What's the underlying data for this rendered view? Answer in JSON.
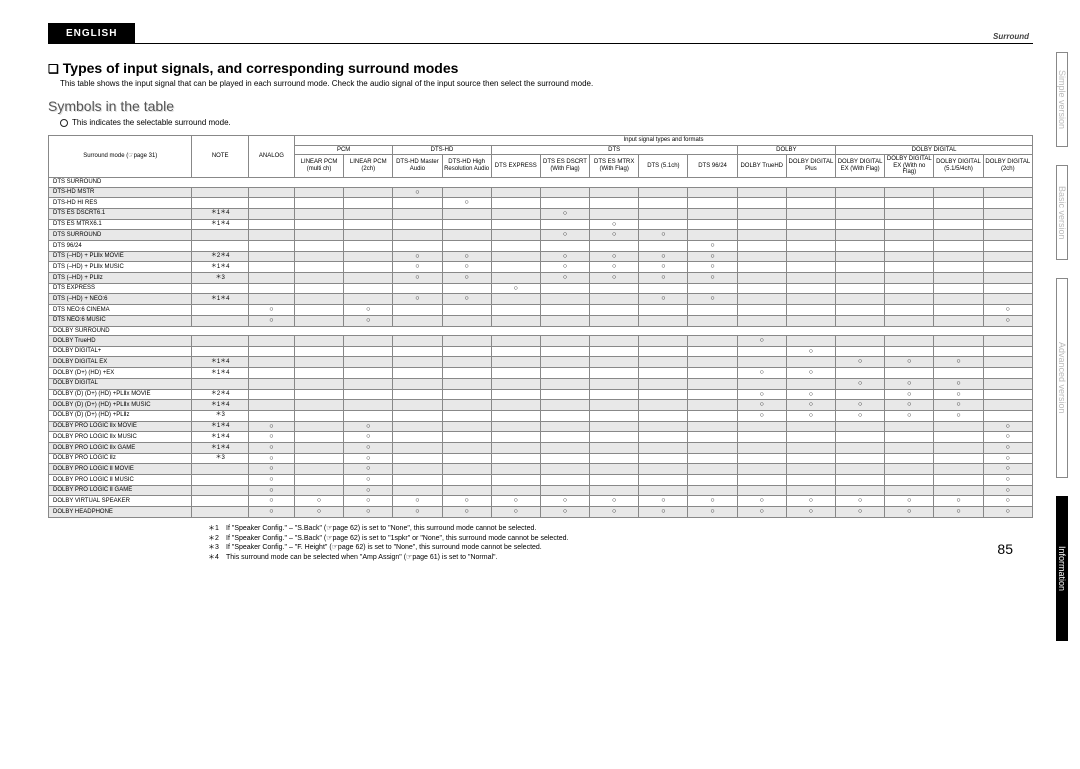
{
  "header": {
    "language": "ENGLISH",
    "category": "Surround"
  },
  "title": "Types of input signals, and corresponding surround modes",
  "intro": "This table shows the input signal that can be played in each surround mode. Check the audio signal of the input source then select the surround mode.",
  "symbols_title": "Symbols in the table",
  "symbols_line": "This indicates the selectable surround mode.",
  "table_header": {
    "mode_col": "Surround mode (☞page 31)",
    "note_col": "NOTE",
    "group_top": "Input signal types and formats",
    "groups": [
      "PCM",
      "DTS-HD",
      "DTS",
      "DOLBY",
      "DOLBY DIGITAL"
    ],
    "analog": "ANALOG",
    "cols": [
      "LINEAR PCM (multi ch)",
      "LINEAR PCM (2ch)",
      "DTS-HD Master Audio",
      "DTS-HD High Resolution Audio",
      "DTS EXPRESS",
      "DTS ES DSCRT (With Flag)",
      "DTS ES MTRX (With Flag)",
      "DTS (5.1ch)",
      "DTS 96/24",
      "DOLBY TrueHD",
      "DOLBY DIGITAL Plus",
      "DOLBY DIGITAL EX (With Flag)",
      "DOLBY DIGITAL EX (With no Flag)",
      "DOLBY DIGITAL (5.1/5/4ch)",
      "DOLBY DIGITAL (2ch)"
    ]
  },
  "sections": [
    {
      "name": "DTS SURROUND",
      "rows": [
        {
          "mode": "DTS-HD MSTR",
          "note": "",
          "marks": [
            "",
            "",
            "",
            "○",
            "",
            "",
            "",
            "",
            "",
            "",
            "",
            "",
            "",
            "",
            "",
            ""
          ]
        },
        {
          "mode": "DTS-HD HI RES",
          "note": "",
          "marks": [
            "",
            "",
            "",
            "",
            "○",
            "",
            "",
            "",
            "",
            "",
            "",
            "",
            "",
            "",
            "",
            ""
          ]
        },
        {
          "mode": "DTS ES DSCRT6.1",
          "note": "＊1＊4",
          "marks": [
            "",
            "",
            "",
            "",
            "",
            "",
            "○",
            "",
            "",
            "",
            "",
            "",
            "",
            "",
            "",
            ""
          ]
        },
        {
          "mode": "DTS ES MTRX6.1",
          "note": "＊1＊4",
          "marks": [
            "",
            "",
            "",
            "",
            "",
            "",
            "",
            "○",
            "",
            "",
            "",
            "",
            "",
            "",
            "",
            ""
          ]
        },
        {
          "mode": "DTS SURROUND",
          "note": "",
          "marks": [
            "",
            "",
            "",
            "",
            "",
            "",
            "○",
            "○",
            "○",
            "",
            "",
            "",
            "",
            "",
            "",
            ""
          ]
        },
        {
          "mode": "DTS 96/24",
          "note": "",
          "marks": [
            "",
            "",
            "",
            "",
            "",
            "",
            "",
            "",
            "",
            "○",
            "",
            "",
            "",
            "",
            "",
            ""
          ]
        },
        {
          "mode": "DTS (–HD) + PLⅡx MOVIE",
          "note": "＊2＊4",
          "marks": [
            "",
            "",
            "",
            "○",
            "○",
            "",
            "○",
            "○",
            "○",
            "○",
            "",
            "",
            "",
            "",
            "",
            ""
          ]
        },
        {
          "mode": "DTS (–HD) + PLⅡx MUSIC",
          "note": "＊1＊4",
          "marks": [
            "",
            "",
            "",
            "○",
            "○",
            "",
            "○",
            "○",
            "○",
            "○",
            "",
            "",
            "",
            "",
            "",
            ""
          ]
        },
        {
          "mode": "DTS (–HD) + PLⅡz",
          "note": "＊3",
          "marks": [
            "",
            "",
            "",
            "○",
            "○",
            "",
            "○",
            "○",
            "○",
            "○",
            "",
            "",
            "",
            "",
            "",
            ""
          ]
        },
        {
          "mode": "DTS EXPRESS",
          "note": "",
          "marks": [
            "",
            "",
            "",
            "",
            "",
            "○",
            "",
            "",
            "",
            "",
            "",
            "",
            "",
            "",
            "",
            ""
          ]
        },
        {
          "mode": "DTS (–HD) + NEO:6",
          "note": "＊1＊4",
          "marks": [
            "",
            "",
            "",
            "○",
            "○",
            "",
            "",
            "",
            "○",
            "○",
            "",
            "",
            "",
            "",
            "",
            ""
          ]
        },
        {
          "mode": "DTS NEO:6 CINEMA",
          "note": "",
          "marks": [
            "○",
            "",
            "○",
            "",
            "",
            "",
            "",
            "",
            "",
            "",
            "",
            "",
            "",
            "",
            "",
            "○"
          ]
        },
        {
          "mode": "DTS NEO:6 MUSIC",
          "note": "",
          "marks": [
            "○",
            "",
            "○",
            "",
            "",
            "",
            "",
            "",
            "",
            "",
            "",
            "",
            "",
            "",
            "",
            "○"
          ]
        }
      ]
    },
    {
      "name": "DOLBY SURROUND",
      "rows": [
        {
          "mode": "DOLBY TrueHD",
          "note": "",
          "marks": [
            "",
            "",
            "",
            "",
            "",
            "",
            "",
            "",
            "",
            "",
            "○",
            "",
            "",
            "",
            "",
            ""
          ]
        },
        {
          "mode": "DOLBY DIGITAL+",
          "note": "",
          "marks": [
            "",
            "",
            "",
            "",
            "",
            "",
            "",
            "",
            "",
            "",
            "",
            "○",
            "",
            "",
            "",
            ""
          ]
        },
        {
          "mode": "DOLBY DIGITAL EX",
          "note": "＊1＊4",
          "marks": [
            "",
            "",
            "",
            "",
            "",
            "",
            "",
            "",
            "",
            "",
            "",
            "",
            "○",
            "○",
            "○",
            ""
          ]
        },
        {
          "mode": "DOLBY (D+) (HD) +EX",
          "note": "＊1＊4",
          "marks": [
            "",
            "",
            "",
            "",
            "",
            "",
            "",
            "",
            "",
            "",
            "○",
            "○",
            "",
            "",
            "",
            ""
          ]
        },
        {
          "mode": "DOLBY DIGITAL",
          "note": "",
          "marks": [
            "",
            "",
            "",
            "",
            "",
            "",
            "",
            "",
            "",
            "",
            "",
            "",
            "○",
            "○",
            "○",
            ""
          ]
        },
        {
          "mode": "DOLBY (D) (D+) (HD) +PLⅡx MOVIE",
          "note": "＊2＊4",
          "marks": [
            "",
            "",
            "",
            "",
            "",
            "",
            "",
            "",
            "",
            "",
            "○",
            "○",
            "",
            "○",
            "○",
            ""
          ]
        },
        {
          "mode": "DOLBY (D) (D+) (HD) +PLⅡx MUSIC",
          "note": "＊1＊4",
          "marks": [
            "",
            "",
            "",
            "",
            "",
            "",
            "",
            "",
            "",
            "",
            "○",
            "○",
            "○",
            "○",
            "○",
            ""
          ]
        },
        {
          "mode": "DOLBY (D) (D+) (HD) +PLⅡz",
          "note": "＊3",
          "marks": [
            "",
            "",
            "",
            "",
            "",
            "",
            "",
            "",
            "",
            "",
            "○",
            "○",
            "○",
            "○",
            "○",
            ""
          ]
        },
        {
          "mode": "DOLBY PRO LOGIC Ⅱx MOVIE",
          "note": "＊1＊4",
          "marks": [
            "○",
            "",
            "○",
            "",
            "",
            "",
            "",
            "",
            "",
            "",
            "",
            "",
            "",
            "",
            "",
            "○"
          ]
        },
        {
          "mode": "DOLBY PRO LOGIC Ⅱx MUSIC",
          "note": "＊1＊4",
          "marks": [
            "○",
            "",
            "○",
            "",
            "",
            "",
            "",
            "",
            "",
            "",
            "",
            "",
            "",
            "",
            "",
            "○"
          ]
        },
        {
          "mode": "DOLBY PRO LOGIC Ⅱx GAME",
          "note": "＊1＊4",
          "marks": [
            "○",
            "",
            "○",
            "",
            "",
            "",
            "",
            "",
            "",
            "",
            "",
            "",
            "",
            "",
            "",
            "○"
          ]
        },
        {
          "mode": "DOLBY PRO LOGIC Ⅱz",
          "note": "＊3",
          "marks": [
            "○",
            "",
            "○",
            "",
            "",
            "",
            "",
            "",
            "",
            "",
            "",
            "",
            "",
            "",
            "",
            "○"
          ]
        },
        {
          "mode": "DOLBY PRO LOGIC Ⅱ MOVIE",
          "note": "",
          "marks": [
            "○",
            "",
            "○",
            "",
            "",
            "",
            "",
            "",
            "",
            "",
            "",
            "",
            "",
            "",
            "",
            "○"
          ]
        },
        {
          "mode": "DOLBY PRO LOGIC Ⅱ MUSIC",
          "note": "",
          "marks": [
            "○",
            "",
            "○",
            "",
            "",
            "",
            "",
            "",
            "",
            "",
            "",
            "",
            "",
            "",
            "",
            "○"
          ]
        },
        {
          "mode": "DOLBY PRO LOGIC Ⅱ GAME",
          "note": "",
          "marks": [
            "○",
            "",
            "○",
            "",
            "",
            "",
            "",
            "",
            "",
            "",
            "",
            "",
            "",
            "",
            "",
            "○"
          ]
        },
        {
          "mode": "DOLBY VIRTUAL SPEAKER",
          "note": "",
          "marks": [
            "○",
            "○",
            "○",
            "○",
            "○",
            "○",
            "○",
            "○",
            "○",
            "○",
            "○",
            "○",
            "○",
            "○",
            "○",
            "○"
          ]
        },
        {
          "mode": "DOLBY HEADPHONE",
          "note": "",
          "marks": [
            "○",
            "○",
            "○",
            "○",
            "○",
            "○",
            "○",
            "○",
            "○",
            "○",
            "○",
            "○",
            "○",
            "○",
            "○",
            "○"
          ]
        }
      ]
    }
  ],
  "footnotes": [
    "If \"Speaker Config.\" – \"S.Back\" (☞page 62) is set to \"None\", this surround mode cannot be selected.",
    "If \"Speaker Config.\" – \"S.Back\" (☞page 62) is set to \"1spkr\" or \"None\", this surround mode cannot be selected.",
    "If \"Speaker Config.\" – \"F. Height\" (☞page 62) is set to \"None\", this surround mode cannot be selected.",
    "This surround mode can be selected when \"Amp Assign\" (☞page 61) is set to \"Normal\"."
  ],
  "page_number": "85",
  "side_tabs": [
    "Simple version",
    "Basic version",
    "Advanced version",
    "Information"
  ]
}
